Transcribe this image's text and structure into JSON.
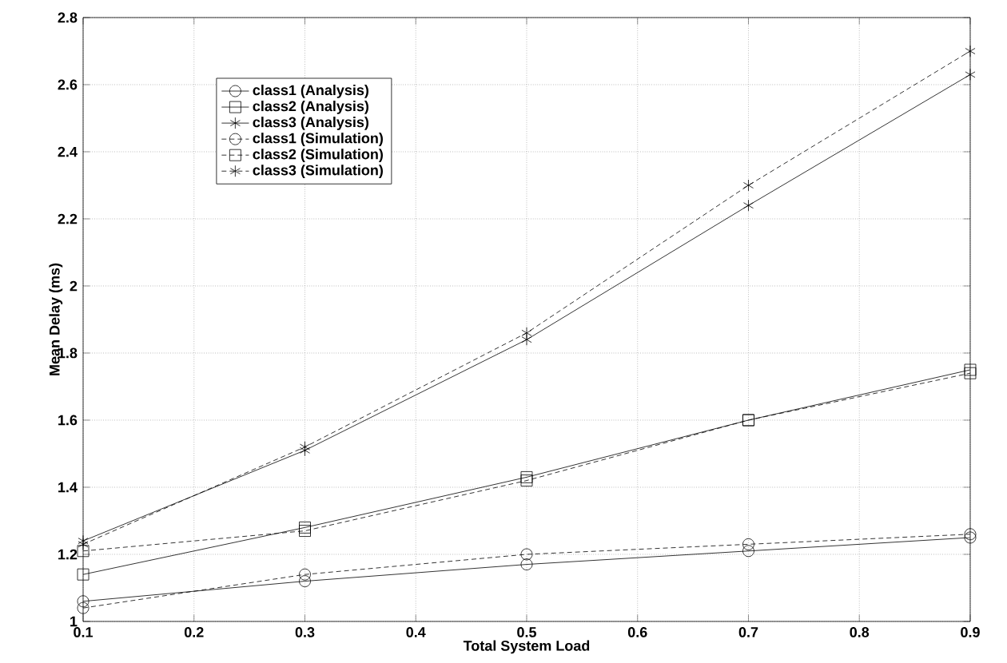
{
  "chart_data": {
    "type": "line",
    "xlabel": "Total System Load",
    "ylabel": "Mean Delay (ms)",
    "x": [
      0.1,
      0.3,
      0.5,
      0.7,
      0.9
    ],
    "xlim": [
      0.1,
      0.9
    ],
    "xticks": [
      0.1,
      0.2,
      0.3,
      0.4,
      0.5,
      0.6,
      0.7,
      0.8,
      0.9
    ],
    "ylim": [
      1,
      2.8
    ],
    "yticks": [
      1,
      1.2,
      1.4,
      1.6,
      1.8,
      2,
      2.2,
      2.4,
      2.6,
      2.8
    ],
    "grid": true,
    "legend": "top left",
    "series": [
      {
        "name": "class1    (Analysis)",
        "color": "#000000",
        "marker": "circle",
        "line_style": "solid",
        "values": [
          1.06,
          1.12,
          1.17,
          1.21,
          1.25
        ]
      },
      {
        "name": "class2    (Analysis)",
        "color": "#000000",
        "marker": "square",
        "line_style": "solid",
        "values": [
          1.14,
          1.28,
          1.43,
          1.6,
          1.75
        ]
      },
      {
        "name": "class3    (Analysis)",
        "color": "#000000",
        "marker": "cross",
        "line_style": "solid",
        "values": [
          1.24,
          1.51,
          1.84,
          2.24,
          2.63
        ]
      },
      {
        "name": "class1    (Simulation)",
        "color": "#000000",
        "marker": "circle",
        "line_style": "dashed",
        "values": [
          1.04,
          1.14,
          1.2,
          1.23,
          1.26
        ]
      },
      {
        "name": "class2    (Simulation)",
        "color": "#000000",
        "marker": "square",
        "line_style": "dashed",
        "values": [
          1.21,
          1.27,
          1.42,
          1.6,
          1.74
        ]
      },
      {
        "name": "class3    (Simulation)",
        "color": "#000000",
        "marker": "cross",
        "line_style": "dashed",
        "values": [
          1.23,
          1.52,
          1.86,
          2.3,
          2.7
        ]
      }
    ]
  }
}
